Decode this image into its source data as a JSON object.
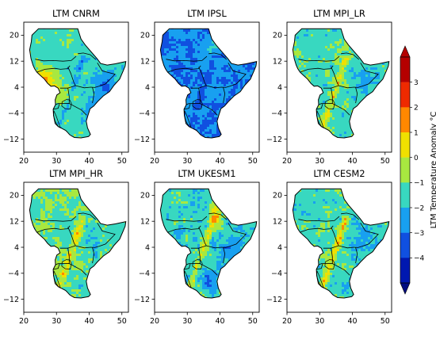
{
  "figure": {
    "panels": [
      {
        "title": "LTM CNRM",
        "scheme": "cnrm"
      },
      {
        "title": "LTM IPSL",
        "scheme": "ipsl"
      },
      {
        "title": "LTM MPI_LR",
        "scheme": "mpilr"
      },
      {
        "title": "LTM MPI_HR",
        "scheme": "mpihr"
      },
      {
        "title": "LTM UKESM1",
        "scheme": "ukesm"
      },
      {
        "title": "LTM CESM2",
        "scheme": "cesm"
      }
    ],
    "x_ticks": [
      "20",
      "30",
      "40",
      "50"
    ],
    "y_ticks": [
      "20",
      "12",
      "4",
      "−4",
      "−12"
    ],
    "colorbar": {
      "label": "LTM Temperature Anomaly °C",
      "ticks": [
        "3",
        "2",
        "1",
        "0",
        "−1",
        "−2",
        "−3",
        "−4"
      ],
      "colors": [
        "#b40000",
        "#ee2a00",
        "#ff8800",
        "#f0e000",
        "#a8e840",
        "#38d8c0",
        "#18a0f0",
        "#1050e0",
        "#0018b0"
      ]
    }
  },
  "chart_data": {
    "type": "heatmap",
    "layout": "2x3 panel grid of gridded maps over the Greater Horn of Africa",
    "variable": "LTM Temperature Anomaly °C",
    "x_range": [
      20,
      52
    ],
    "y_range": [
      -16,
      24
    ],
    "x_ticks": [
      20,
      30,
      40,
      50
    ],
    "y_ticks": [
      20,
      12,
      4,
      -4,
      -12
    ],
    "color_scale": {
      "min": -4,
      "max": 3,
      "step": 1,
      "extend": "both"
    },
    "panels": [
      "LTM CNRM",
      "LTM IPSL",
      "LTM MPI_LR",
      "LTM MPI_HR",
      "LTM UKESM1",
      "LTM CESM2"
    ]
  }
}
